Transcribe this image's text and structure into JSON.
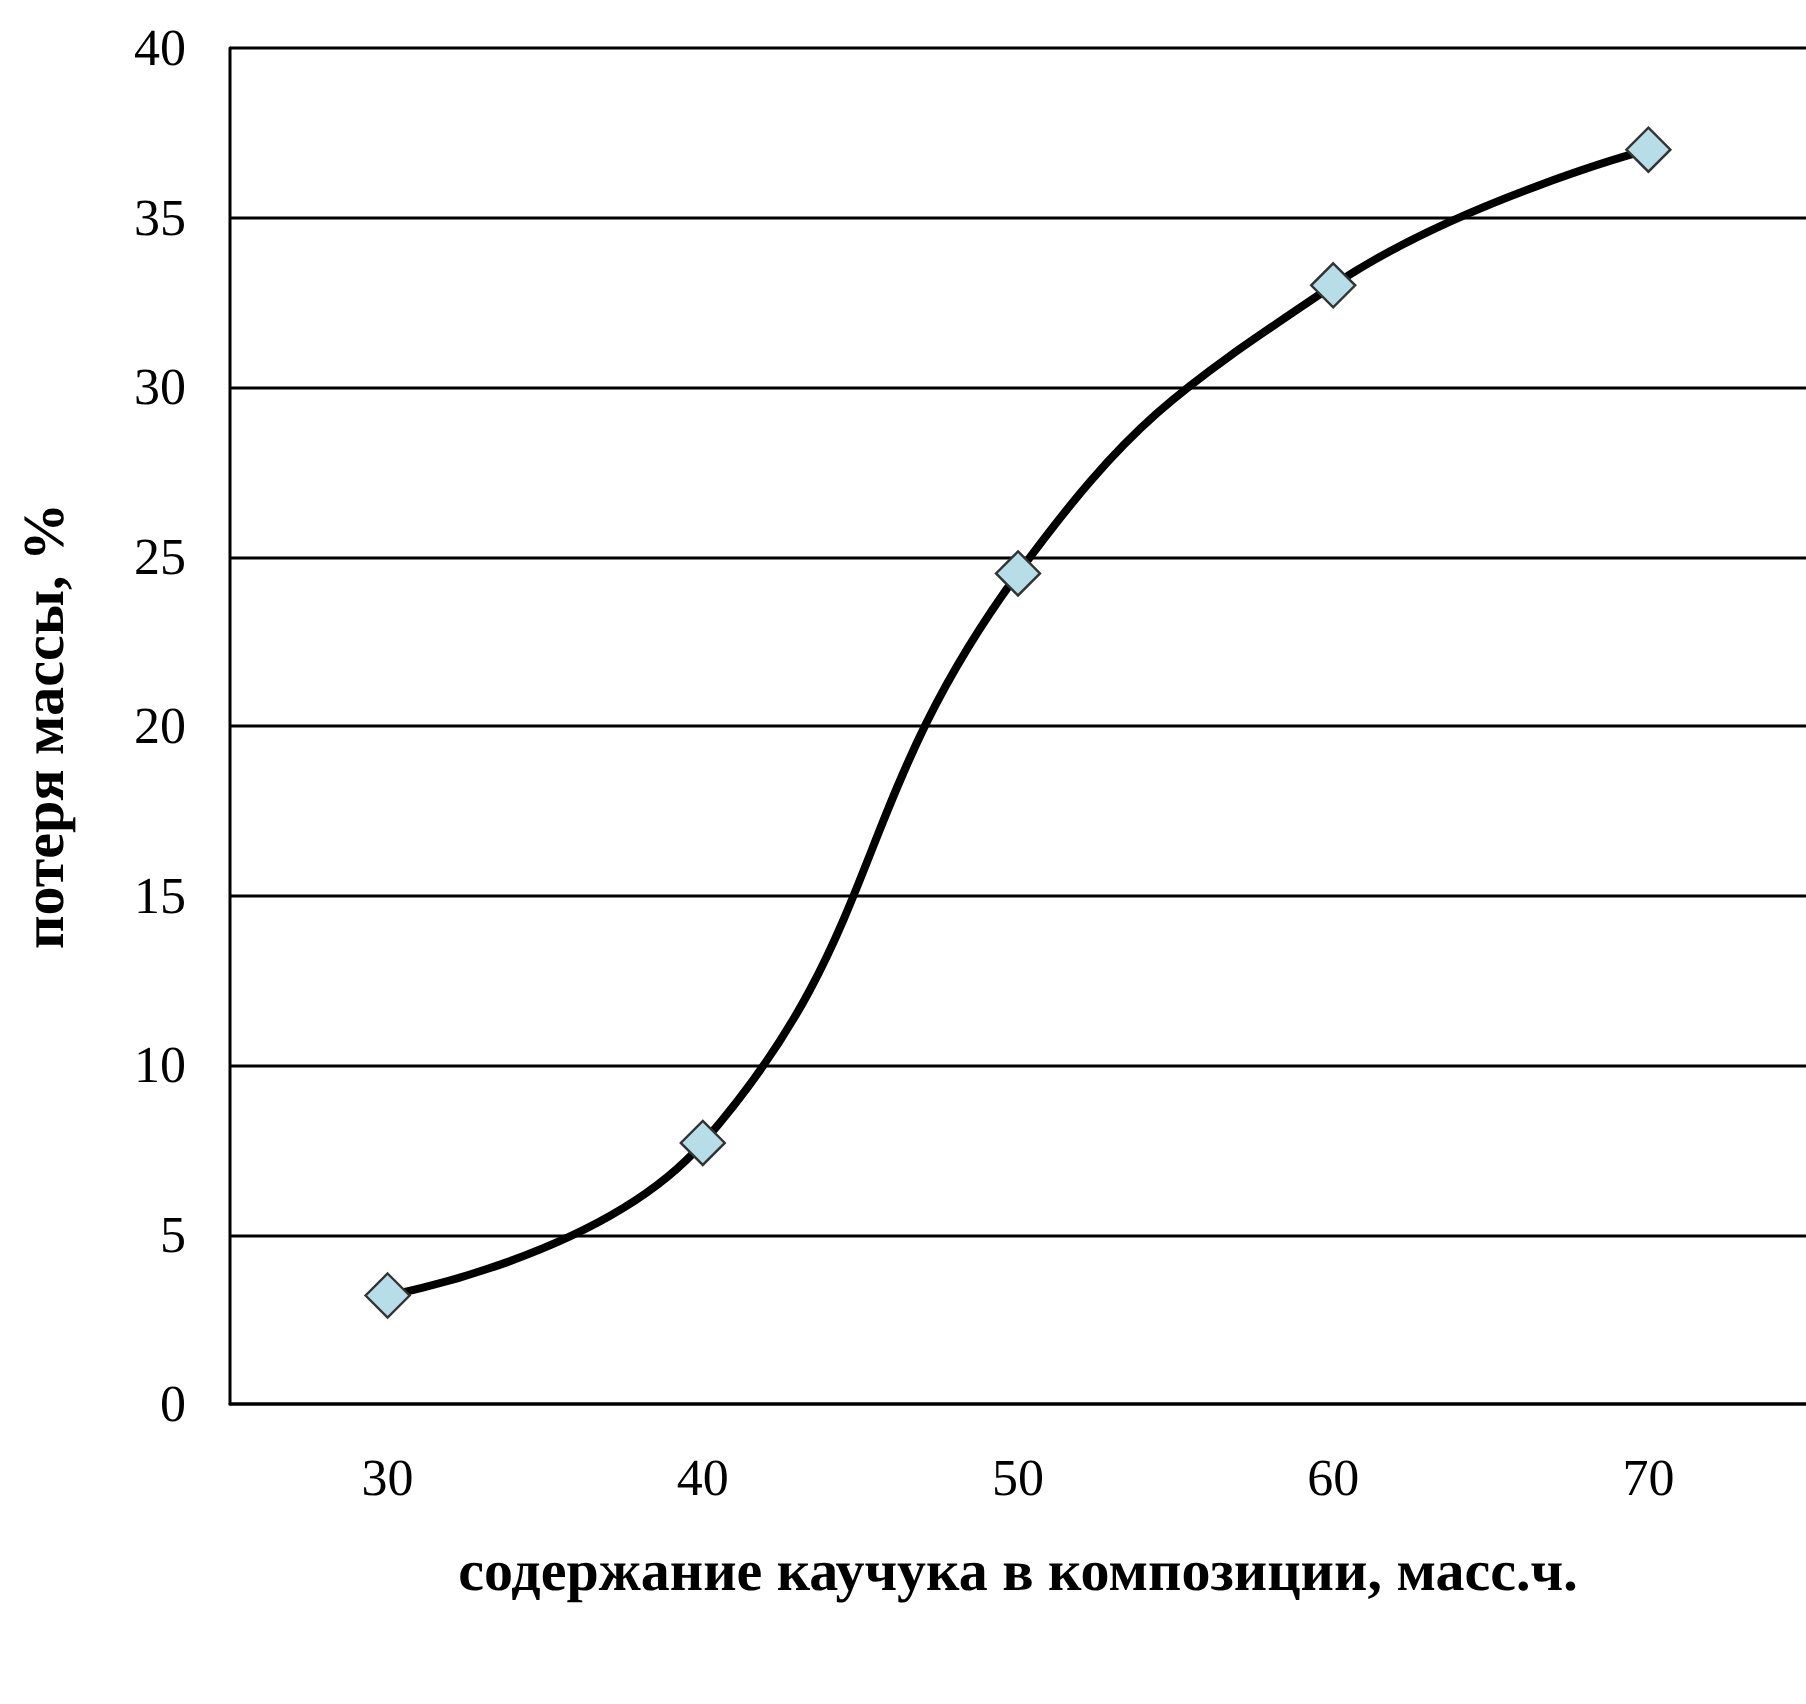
{
  "chart_data": {
    "type": "line",
    "xlabel": "содержание каучука в композиции, масс.ч.",
    "ylabel": "потеря массы, %",
    "categories": [
      "30",
      "40",
      "50",
      "60",
      "70"
    ],
    "series": [
      {
        "color": "#000000",
        "colors": [
          "#b7dde8",
          "#b7dde8",
          "#b7dde8",
          "#b7dde8",
          "#b7dde8"
        ],
        "values": [
          3.2,
          7.7,
          24.5,
          33.0,
          37.0
        ]
      }
    ],
    "ylim": [
      0,
      40
    ],
    "yticks": [
      0,
      5,
      10,
      15,
      20,
      25,
      30,
      35,
      40
    ],
    "grid": "y",
    "marker": "diamond",
    "line_style": "solid"
  }
}
